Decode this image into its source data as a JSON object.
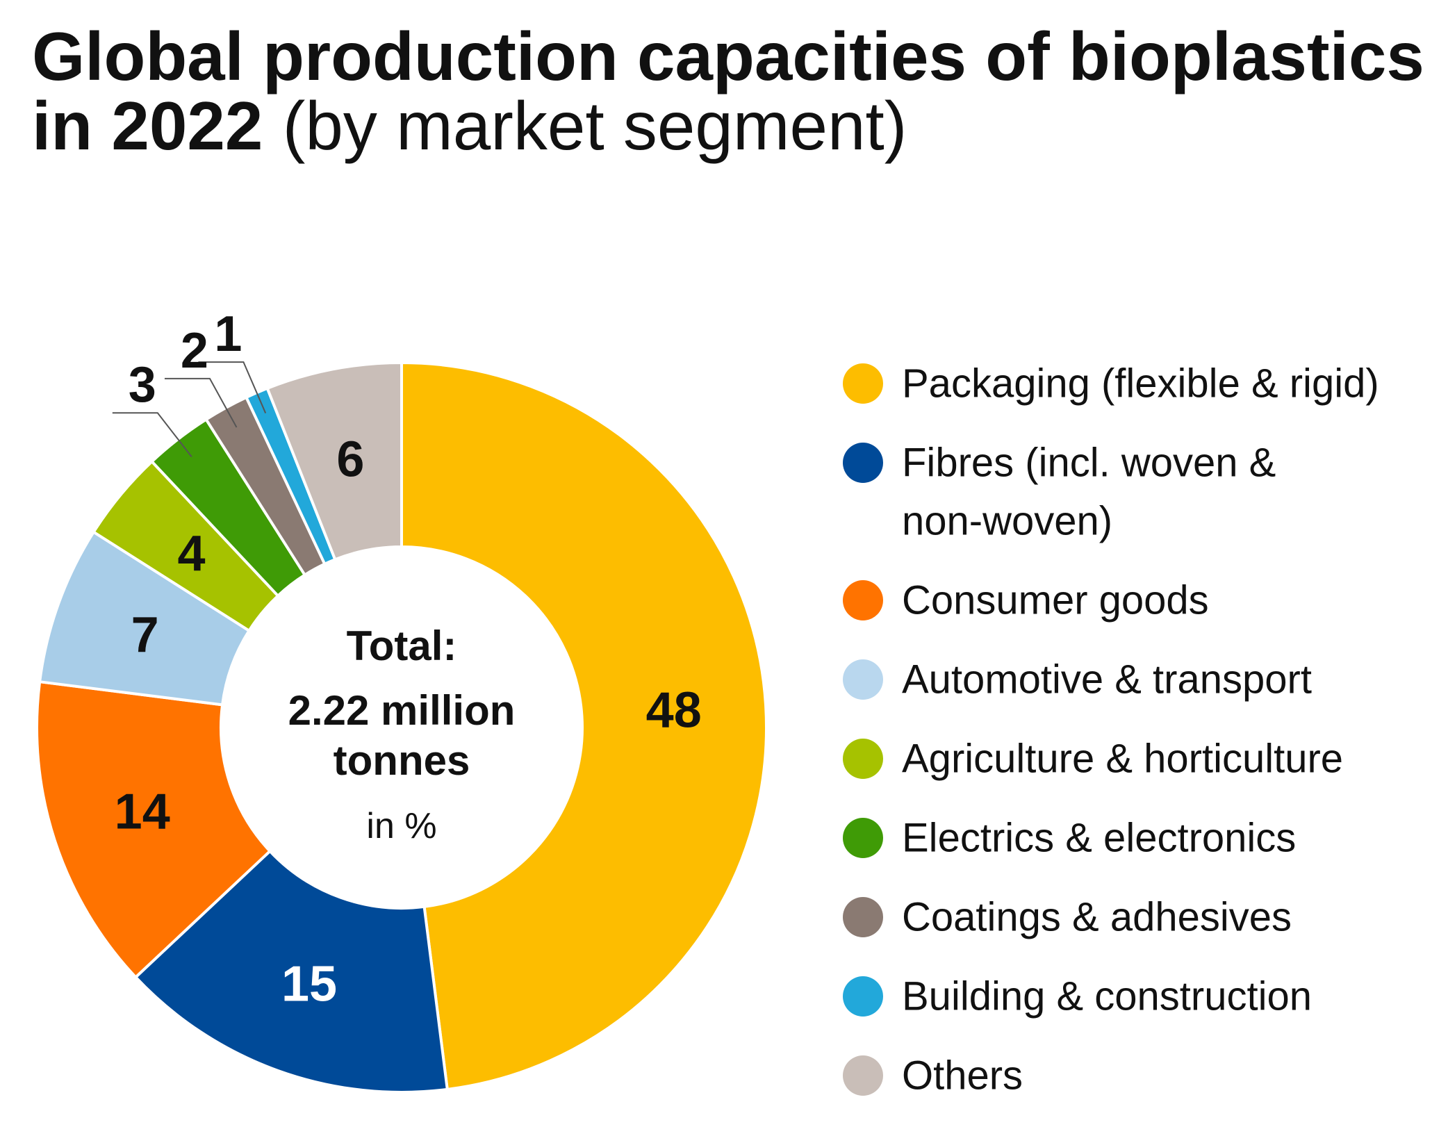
{
  "colors": {
    "packaging": "#FDBD00",
    "fibres": "#004A98",
    "consumer_goods": "#FF7300",
    "automotive": "#A8CDE8",
    "agriculture": "#A6C200",
    "electrics": "#3F9B06",
    "coatings": "#8A7A72",
    "building": "#22A8DA",
    "others": "#C9BEB8"
  },
  "chart_data": {
    "type": "pie",
    "subtype": "donut",
    "title": "Global production capacities of bioplastics in 2022",
    "title_bold_line1": "Global production capacities of bioplastics",
    "title_bold_line2": "in 2022",
    "title_suffix": "(by market segment)",
    "unit": "%",
    "center": {
      "line1": "Total:",
      "line2": "2.22 million",
      "line3": "tonnes",
      "line4": "in %"
    },
    "slices": [
      {
        "label": "Packaging (flexible & rigid)",
        "value": 48,
        "color": "#FDBD00",
        "label_color": "dark"
      },
      {
        "label": "Fibres (incl. woven & non-woven)",
        "value": 15,
        "color": "#004A98",
        "label_color": "light"
      },
      {
        "label": "Consumer goods",
        "value": 14,
        "color": "#FF7300",
        "label_color": "dark"
      },
      {
        "label": "Automotive & transport",
        "value": 7,
        "color": "#A8CDE8",
        "label_color": "dark"
      },
      {
        "label": "Agriculture & horticulture",
        "value": 4,
        "color": "#A6C200",
        "label_color": "dark"
      },
      {
        "label": "Electrics & electronics",
        "value": 3,
        "color": "#3F9B06",
        "label_color": "dark"
      },
      {
        "label": "Coatings & adhesives",
        "value": 2,
        "color": "#8A7A72",
        "label_color": "dark"
      },
      {
        "label": "Building & construction",
        "value": 1,
        "color": "#22A8DA",
        "label_color": "dark"
      },
      {
        "label": "Others",
        "value": 6,
        "color": "#C9BEB8",
        "label_color": "dark"
      }
    ],
    "legend": [
      {
        "lines": [
          "Packaging (flexible & rigid)"
        ],
        "color": "#FDBD00"
      },
      {
        "lines": [
          "Fibres (incl. woven &",
          "non-woven)"
        ],
        "color": "#004A98"
      },
      {
        "lines": [
          "Consumer goods"
        ],
        "color": "#FF7300"
      },
      {
        "lines": [
          "Automotive & transport"
        ],
        "color": "#B9D7EE"
      },
      {
        "lines": [
          "Agriculture & horticulture"
        ],
        "color": "#A6C200"
      },
      {
        "lines": [
          "Electrics & electronics"
        ],
        "color": "#3F9B06"
      },
      {
        "lines": [
          "Coatings & adhesives"
        ],
        "color": "#8A7A72"
      },
      {
        "lines": [
          "Building & construction"
        ],
        "color": "#22A8DA"
      },
      {
        "lines": [
          "Others"
        ],
        "color": "#C9BEB8"
      }
    ],
    "legend_position": "right"
  }
}
